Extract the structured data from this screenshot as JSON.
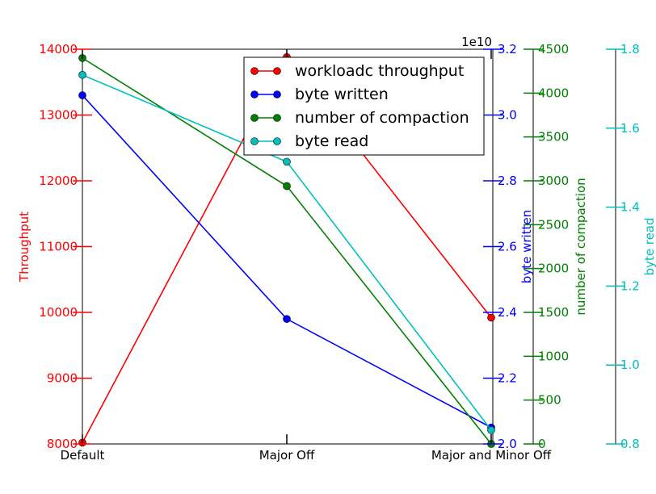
{
  "chart_data": {
    "type": "line",
    "categories": [
      "Default",
      "Major Off",
      "Major and Minor Off"
    ],
    "axes": {
      "throughput": {
        "label": "Throughput",
        "color": "#ff0000",
        "range": [
          8000,
          14000
        ],
        "ticks": [
          "8000",
          "9000",
          "10000",
          "11000",
          "12000",
          "13000",
          "14000"
        ]
      },
      "byte_written": {
        "label": "byte written",
        "color": "#0000ff",
        "range": [
          2.0,
          3.2
        ],
        "ticks": [
          "2.0",
          "2.2",
          "2.4",
          "2.6",
          "2.8",
          "3.0",
          "3.2"
        ],
        "offset_text": "1e10"
      },
      "compaction": {
        "label": "number of compaction",
        "color": "#008000",
        "range": [
          0,
          4500
        ],
        "ticks": [
          "0",
          "500",
          "1000",
          "1500",
          "2000",
          "2500",
          "3000",
          "3500",
          "4000",
          "4500"
        ]
      },
      "byte_read": {
        "label": "byte read",
        "color": "#00bfbf",
        "range": [
          0.8,
          1.8
        ],
        "ticks": [
          "0.8",
          "1.0",
          "1.2",
          "1.4",
          "1.6",
          "1.8"
        ]
      }
    },
    "series": [
      {
        "name": "workloadc throughput",
        "axis": "throughput",
        "color": "#ff0000",
        "values": [
          8020,
          13880,
          9920
        ]
      },
      {
        "name": "byte written",
        "axis": "byte_written",
        "color": "#0000ff",
        "values": [
          3.06,
          2.38,
          2.05
        ]
      },
      {
        "name": "number of compaction",
        "axis": "compaction",
        "color": "#008000",
        "values": [
          4400,
          2940,
          0
        ]
      },
      {
        "name": "byte read",
        "axis": "byte_read",
        "color": "#00bfbf",
        "values": [
          1.735,
          1.515,
          0.835
        ]
      }
    ],
    "legend": {
      "placement": "top-right"
    }
  }
}
